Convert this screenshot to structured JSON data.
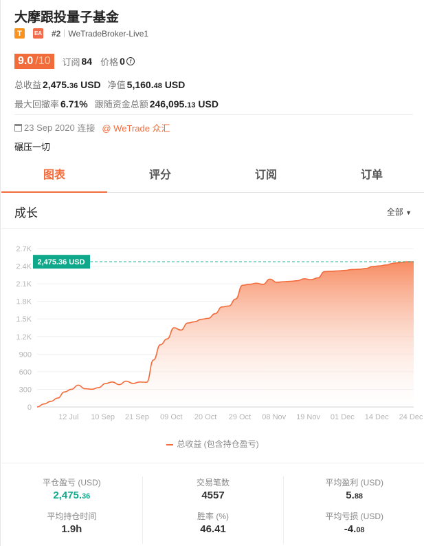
{
  "header": {
    "title": "大摩跟投量子基金",
    "badge_t": "T",
    "badge_ea": "EA",
    "rank": "#2",
    "broker": "WeTradeBroker-Live1",
    "score": "9.0",
    "score_max": "/10",
    "subs_label": "订阅",
    "subs": "84",
    "price_label": "价格",
    "price": "0",
    "price_icon": "free-coin-icon",
    "total_profit_label": "总收益",
    "total_profit_int": "2,475.",
    "total_profit_dec": "36",
    "total_profit_unit": "USD",
    "equity_label": "净值",
    "equity_int": "5,160.",
    "equity_dec": "48",
    "equity_unit": "USD",
    "drawdown_label": "最大回撤率",
    "drawdown": "6.71%",
    "follow_label": "跟随资金总额",
    "follow_int": "246,095.",
    "follow_dec": "13",
    "follow_unit": "USD",
    "date": "23 Sep 2020",
    "connect_label": "连接",
    "platform_link": "@ WeTrade 众汇",
    "description": "碾压一切"
  },
  "tabs": [
    {
      "label": "图表",
      "active": true
    },
    {
      "label": "评分"
    },
    {
      "label": "订阅"
    },
    {
      "label": "订单"
    }
  ],
  "section": {
    "title": "成长",
    "filter": "全部"
  },
  "colors": {
    "accent": "#f26b3a",
    "green": "#10a88a"
  },
  "chart_data": {
    "type": "area",
    "y_ticks": [
      "0",
      "300",
      "600",
      "900",
      "1.2K",
      "1.5K",
      "1.8K",
      "2.1K",
      "2.4K",
      "2.7K"
    ],
    "ylim": [
      0,
      2700
    ],
    "x_ticks": [
      "12 Jul",
      "10 Sep",
      "21 Sep",
      "09 Oct",
      "20 Oct",
      "29 Oct",
      "08 Nov",
      "19 Nov",
      "01 Dec",
      "14 Dec",
      "24 Dec"
    ],
    "current_label": "2,475.36 USD",
    "current_value": 2475.36,
    "series": [
      {
        "name": "总收益 (包含持仓盈亏)",
        "values": [
          0,
          50,
          95,
          150,
          255,
          300,
          370,
          310,
          301,
          330,
          400,
          425,
          380,
          440,
          400,
          425,
          420,
          800,
          1060,
          1160,
          1350,
          1310,
          1430,
          1452,
          1495,
          1510,
          1590,
          1705,
          1720,
          1840,
          2075,
          2090,
          2110,
          2090,
          2179,
          2125,
          2135,
          2142,
          2152,
          2185,
          2170,
          2200,
          2308,
          2312,
          2320,
          2328,
          2343,
          2347,
          2360,
          2394,
          2404,
          2420,
          2450,
          2460,
          2475,
          2475
        ]
      }
    ],
    "grid": true,
    "legend": "bottom"
  },
  "stats": [
    {
      "label": "平仓盈亏 (USD)",
      "int": "2,475.",
      "dec": "36",
      "green": true
    },
    {
      "label": "交易笔数",
      "int": "4557",
      "dec": ""
    },
    {
      "label": "平均盈利 (USD)",
      "int": "5.",
      "dec": "88"
    },
    {
      "label": "平均持仓时间",
      "int": "1.9h",
      "dec": ""
    },
    {
      "label": "胜率 (%)",
      "int": "46.41",
      "dec": ""
    },
    {
      "label": "平均亏损 (USD)",
      "int": "-4.",
      "dec": "08"
    }
  ]
}
